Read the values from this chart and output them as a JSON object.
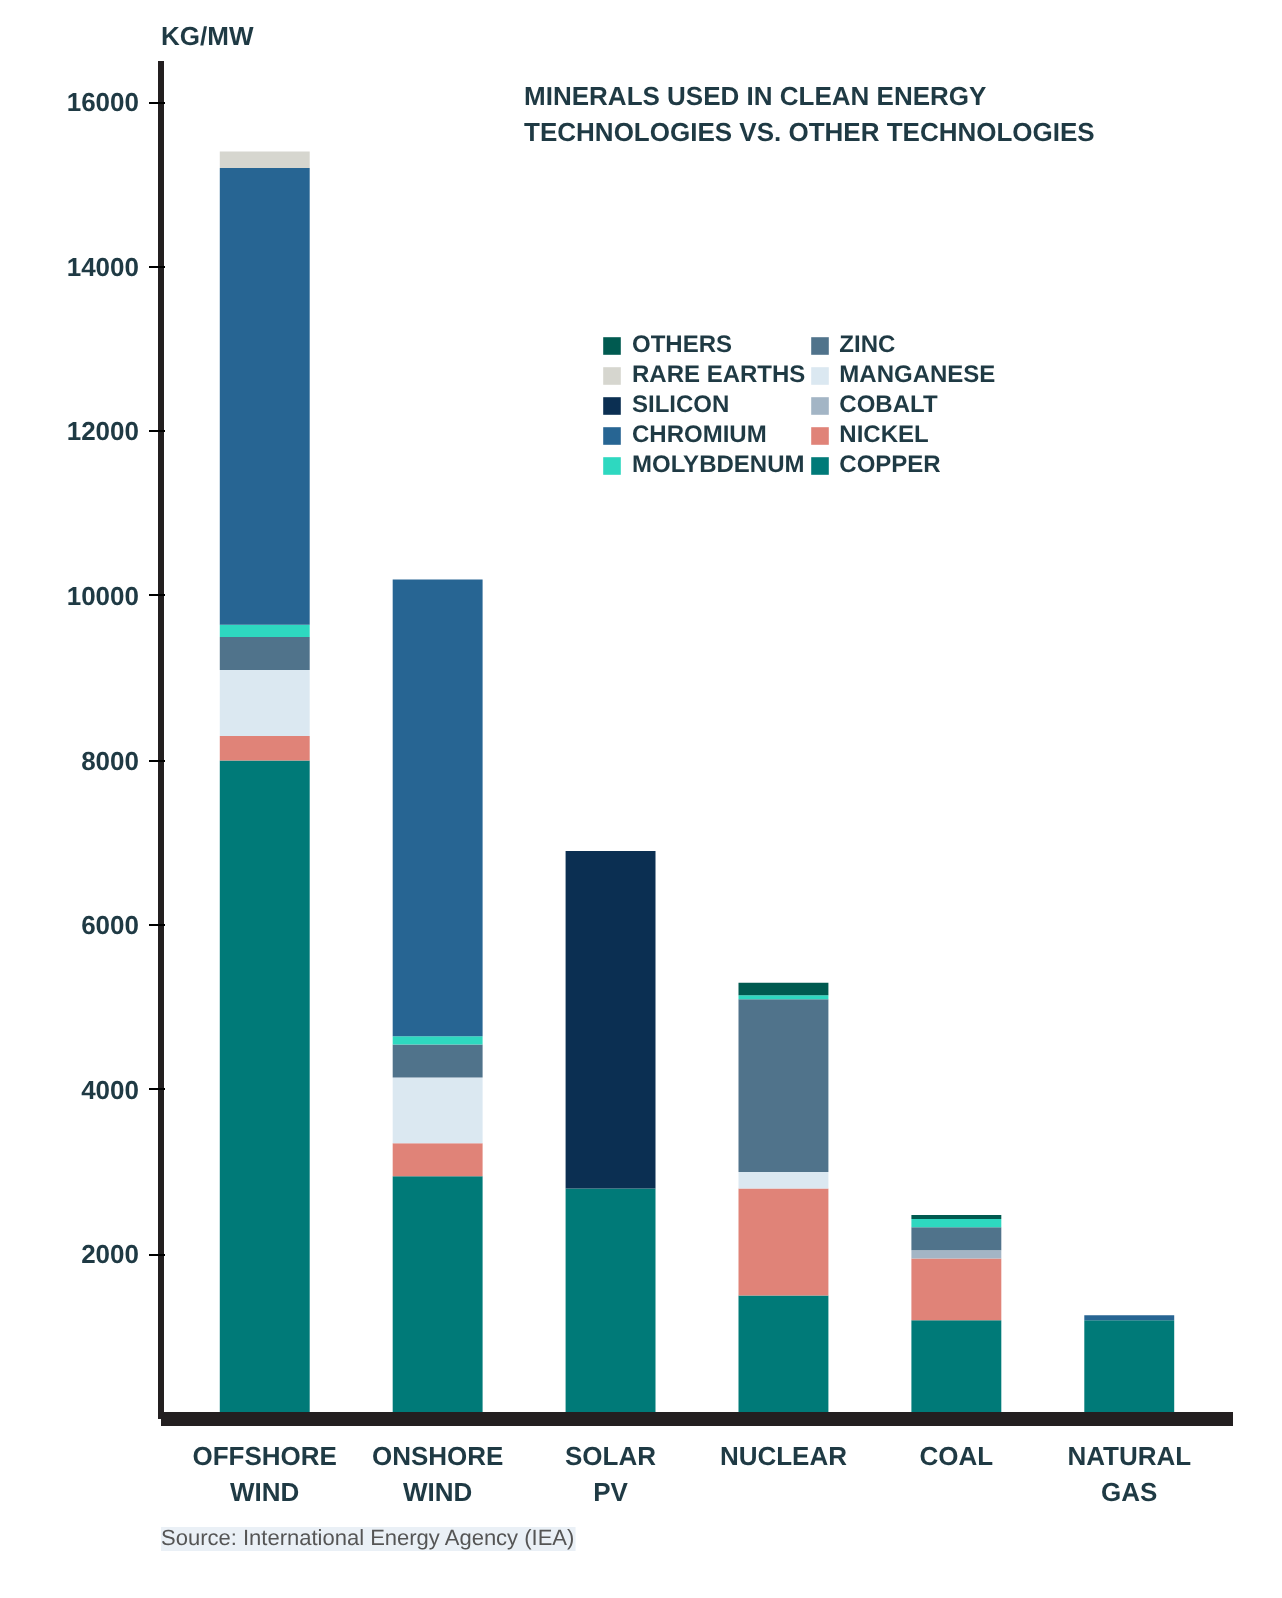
{
  "chart_data": {
    "type": "bar",
    "stacked": true,
    "title": "MINERALS USED IN CLEAN ENERGY TECHNOLOGIES VS. OTHER TECHNOLOGIES",
    "ylabel": "KG/MW",
    "categories": [
      "OFFSHORE WIND",
      "ONSHORE WIND",
      "SOLAR PV",
      "NUCLEAR",
      "COAL",
      "NATURAL GAS"
    ],
    "series": [
      {
        "name": "COPPER",
        "color": "#007a78",
        "values": [
          8000,
          2950,
          2800,
          1500,
          1200,
          1200
        ]
      },
      {
        "name": "NICKEL",
        "color": "#e08378",
        "values": [
          300,
          400,
          null,
          1300,
          750,
          null
        ]
      },
      {
        "name": "COBALT",
        "color": "#a3b5c5",
        "values": [
          null,
          null,
          null,
          null,
          100,
          null
        ]
      },
      {
        "name": "MANGANESE",
        "color": "#dbe8f1",
        "values": [
          800,
          800,
          null,
          200,
          null,
          null
        ]
      },
      {
        "name": "ZINC",
        "color": "#50738b",
        "values": [
          400,
          400,
          null,
          2100,
          280,
          null
        ]
      },
      {
        "name": "MOLYBDENUM",
        "color": "#2ed8c0",
        "values": [
          150,
          100,
          null,
          50,
          100,
          null
        ]
      },
      {
        "name": "CHROMIUM",
        "color": "#276593",
        "values": [
          5550,
          5550,
          null,
          null,
          null,
          60
        ]
      },
      {
        "name": "SILICON",
        "color": "#0b2f52",
        "values": [
          null,
          null,
          4100,
          null,
          null,
          null
        ]
      },
      {
        "name": "RARE EARTHS",
        "color": "#d6d6cf",
        "values": [
          200,
          null,
          null,
          null,
          null,
          null
        ]
      },
      {
        "name": "OTHERS",
        "color": "#005a50",
        "values": [
          null,
          null,
          null,
          150,
          50,
          null
        ]
      }
    ],
    "ylim": [
      0,
      16500
    ],
    "yticks": [
      2000,
      4000,
      6000,
      8000,
      10000,
      12000,
      14000,
      16000
    ],
    "grid": false,
    "legend": "top right",
    "annotations": [
      "Source: International Energy Agency (IEA)"
    ]
  }
}
